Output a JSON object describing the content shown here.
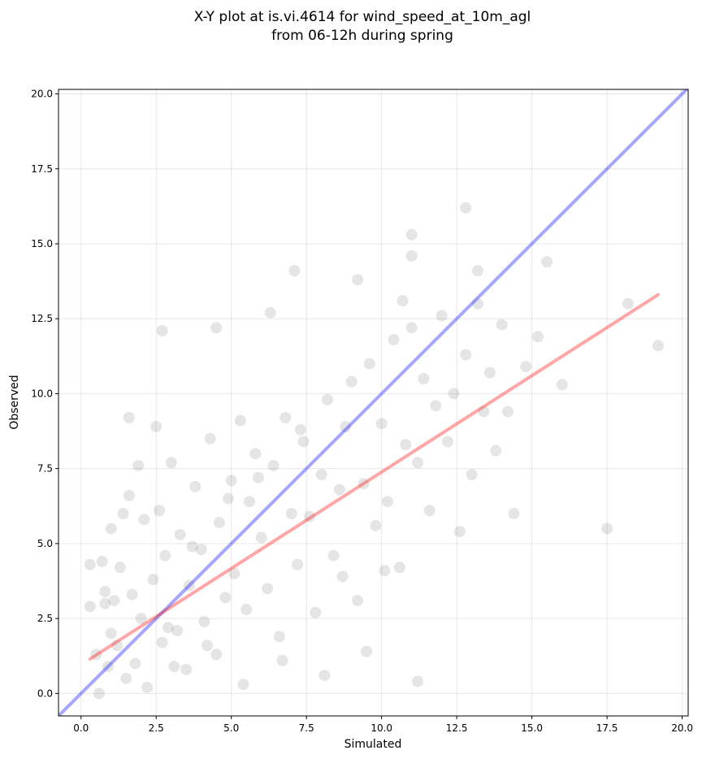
{
  "chart_data": {
    "type": "scatter",
    "title_lines": [
      "X-Y plot at is.vi.4614 for wind_speed_at_10m_agl",
      "from 06-12h during spring"
    ],
    "xlabel": "Simulated",
    "ylabel": "Observed",
    "xlim": [
      -0.75,
      20.2
    ],
    "ylim": [
      -0.75,
      20.15
    ],
    "xticks": [
      0.0,
      2.5,
      5.0,
      7.5,
      10.0,
      12.5,
      15.0,
      17.5,
      20.0
    ],
    "yticks": [
      0.0,
      2.5,
      5.0,
      7.5,
      10.0,
      12.5,
      15.0,
      17.5,
      20.0
    ],
    "xtick_labels": [
      "0.0",
      "2.5",
      "5.0",
      "7.5",
      "10.0",
      "12.5",
      "15.0",
      "17.5",
      "20.0"
    ],
    "ytick_labels": [
      "0.0",
      "2.5",
      "5.0",
      "7.5",
      "10.0",
      "12.5",
      "15.0",
      "17.5",
      "20.0"
    ],
    "grid": true,
    "legend": "none",
    "series": [
      {
        "kind": "points",
        "color": "#000000",
        "opacity": 0.1,
        "x": [
          0.3,
          0.3,
          0.5,
          0.6,
          0.7,
          0.8,
          0.9,
          1.0,
          1.0,
          1.1,
          1.2,
          1.3,
          1.5,
          1.6,
          1.7,
          1.8,
          1.9,
          2.0,
          2.1,
          2.2,
          2.4,
          2.5,
          2.6,
          2.7,
          2.8,
          3.0,
          3.2,
          3.3,
          3.5,
          3.6,
          3.8,
          4.0,
          4.1,
          4.3,
          4.5,
          4.6,
          4.8,
          5.0,
          5.1,
          5.3,
          5.5,
          5.6,
          5.8,
          6.0,
          6.2,
          6.4,
          6.6,
          6.8,
          7.0,
          7.2,
          7.4,
          7.6,
          7.8,
          8.0,
          8.2,
          8.4,
          8.6,
          8.8,
          9.0,
          9.2,
          9.4,
          9.6,
          9.8,
          10.0,
          10.2,
          10.4,
          10.6,
          10.8,
          11.0,
          11.2,
          11.4,
          11.6,
          11.8,
          12.0,
          12.2,
          12.4,
          12.6,
          12.8,
          13.0,
          13.2,
          13.4,
          13.6,
          13.8,
          14.0,
          14.2,
          14.4,
          14.8,
          15.2,
          15.5,
          16.0,
          17.5,
          18.2,
          19.2,
          2.7,
          1.6,
          4.5,
          6.3,
          7.1,
          12.8,
          11.0,
          11.0,
          13.2,
          9.2,
          10.7,
          11.2,
          3.1,
          4.2,
          5.4,
          6.7,
          8.1,
          9.5,
          0.8,
          1.4,
          2.9,
          3.7,
          4.9,
          5.9,
          7.3,
          8.7,
          10.1
        ],
        "y": [
          4.3,
          2.9,
          1.3,
          0.0,
          4.4,
          3.4,
          0.9,
          5.5,
          2.0,
          3.1,
          1.6,
          4.2,
          0.5,
          6.6,
          3.3,
          1.0,
          7.6,
          2.5,
          5.8,
          0.2,
          3.8,
          8.9,
          6.1,
          1.7,
          4.6,
          7.7,
          2.1,
          5.3,
          0.8,
          3.6,
          6.9,
          4.8,
          2.4,
          8.5,
          1.3,
          5.7,
          3.2,
          7.1,
          4.0,
          9.1,
          2.8,
          6.4,
          8.0,
          5.2,
          3.5,
          7.6,
          1.9,
          9.2,
          6.0,
          4.3,
          8.4,
          5.9,
          2.7,
          7.3,
          9.8,
          4.6,
          6.8,
          8.9,
          10.4,
          3.1,
          7.0,
          11.0,
          5.6,
          9.0,
          6.4,
          11.8,
          4.2,
          8.3,
          12.2,
          7.7,
          10.5,
          6.1,
          9.6,
          12.6,
          8.4,
          10.0,
          5.4,
          11.3,
          7.3,
          13.0,
          9.4,
          10.7,
          8.1,
          12.3,
          9.4,
          6.0,
          10.9,
          11.9,
          14.4,
          10.3,
          5.5,
          13.0,
          11.6,
          12.1,
          9.2,
          12.2,
          12.7,
          14.1,
          16.2,
          15.3,
          14.6,
          14.1,
          13.8,
          13.1,
          0.4,
          0.9,
          1.6,
          0.3,
          1.1,
          0.6,
          1.4,
          3.0,
          6.0,
          2.2,
          4.9,
          6.5,
          7.2,
          8.8,
          3.9,
          4.1
        ]
      },
      {
        "kind": "line",
        "color": "#0000ff",
        "opacity": 0.35,
        "x": [
          -0.75,
          20.2
        ],
        "y": [
          -0.75,
          20.2
        ]
      },
      {
        "kind": "line",
        "color": "#ff0000",
        "opacity": 0.35,
        "x": [
          0.3,
          19.2
        ],
        "y": [
          1.15,
          13.3
        ]
      }
    ]
  }
}
